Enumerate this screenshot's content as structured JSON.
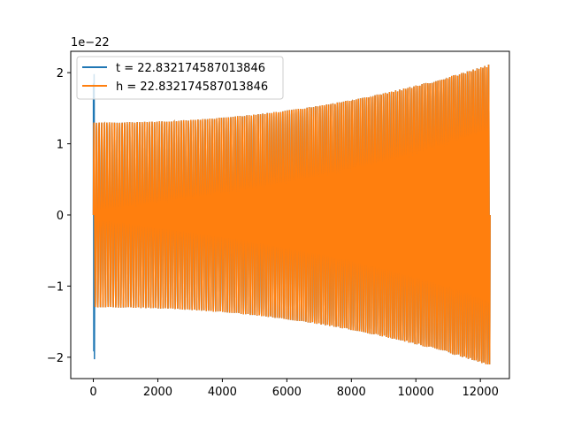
{
  "chart_data": {
    "type": "line",
    "title": "",
    "xlabel": "",
    "ylabel": "",
    "y_scale_label": "1e−22",
    "xlim": [
      -700,
      12900
    ],
    "ylim": [
      -2.3,
      2.3
    ],
    "x_ticks": [
      0,
      2000,
      4000,
      6000,
      8000,
      10000,
      12000
    ],
    "x_tick_labels": [
      "0",
      "2000",
      "4000",
      "6000",
      "8000",
      "10000",
      "12000"
    ],
    "y_ticks": [
      -2,
      -1,
      0,
      1,
      2
    ],
    "y_tick_labels": [
      "−2",
      "−1",
      "0",
      "1",
      "2"
    ],
    "grid": false,
    "legend_position": "upper-left",
    "series": [
      {
        "name": "t = 22.832174587013846",
        "color": "#1f77b4",
        "description_values": {
          "x_start": 0,
          "x_end": 12300,
          "start_spike_amplitude": 2.1,
          "amplitude_start": 1.3,
          "amplitude_end": 2.12,
          "cycles": 180
        }
      },
      {
        "name": "h = 22.832174587013846",
        "color": "#ff7f0e",
        "description_values": {
          "x_start": 0,
          "x_end": 12300,
          "amplitude_start": 1.3,
          "amplitude_end": 2.12,
          "cycles": 180
        }
      }
    ]
  }
}
